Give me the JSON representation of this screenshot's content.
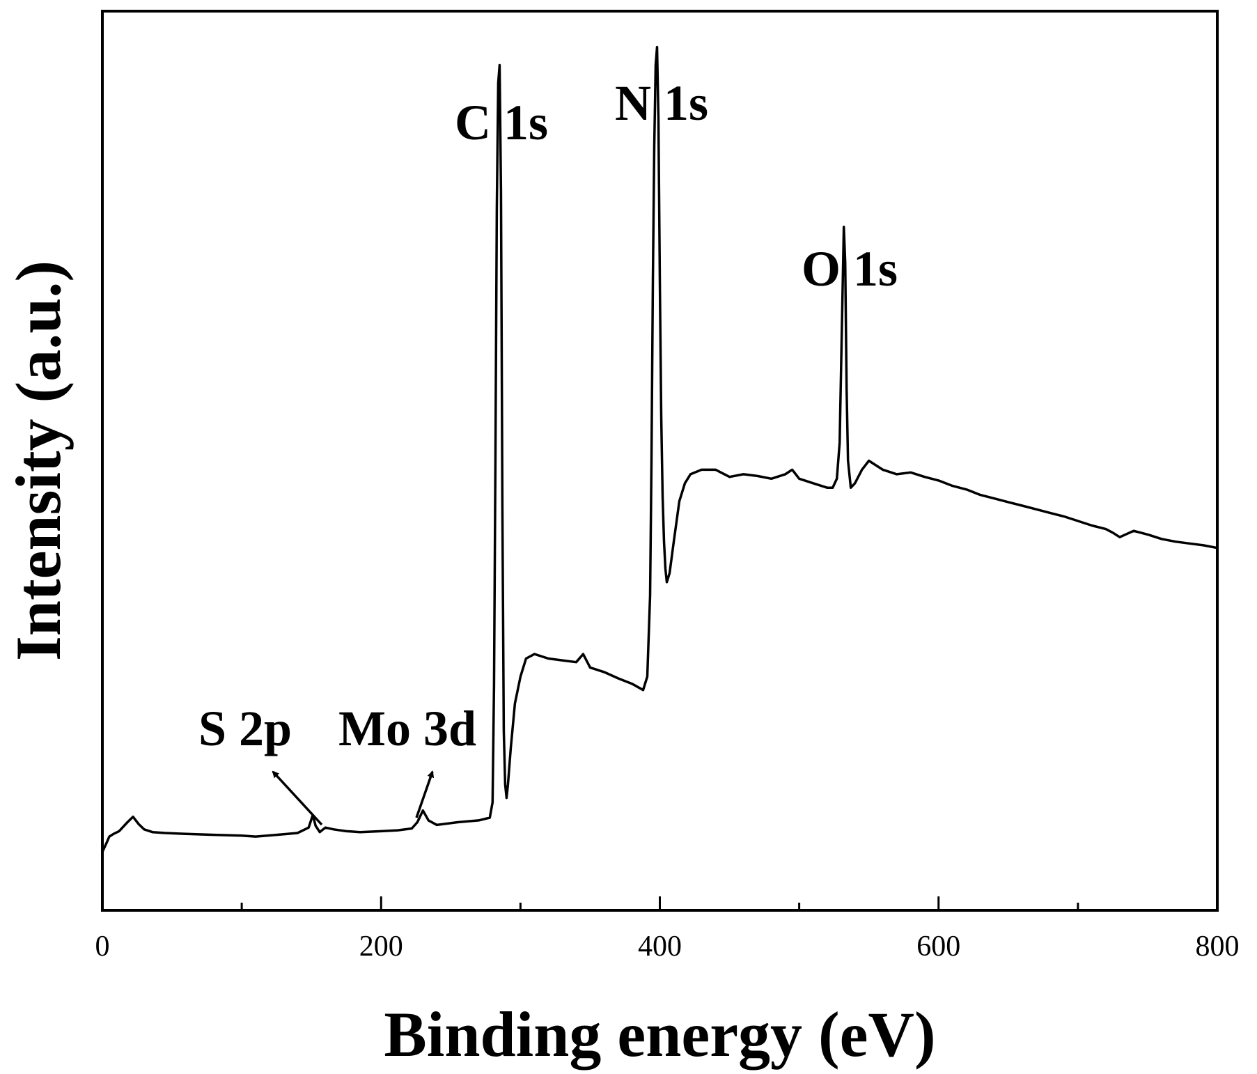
{
  "chart_data": {
    "type": "line",
    "xlabel": "Binding energy (eV)",
    "ylabel": "Intensity (a.u.)",
    "xlim": [
      0,
      800
    ],
    "ylim": [
      0,
      100
    ],
    "xticks": [
      0,
      200,
      400,
      600,
      800
    ],
    "grid": false,
    "legend": "none",
    "line_color": "#000000",
    "series": [
      {
        "x": [
          0,
          3,
          5,
          8,
          12,
          18,
          22,
          26,
          30,
          36,
          45,
          60,
          80,
          100,
          110,
          125,
          140,
          148,
          151,
          153,
          156,
          160,
          166,
          175,
          185,
          200,
          212,
          222,
          226,
          230,
          234,
          240,
          255,
          270,
          278,
          280,
          281,
          282,
          283,
          284,
          285,
          286,
          287,
          288,
          289,
          290,
          291,
          293,
          296,
          300,
          304,
          310,
          320,
          330,
          340,
          345,
          350,
          360,
          370,
          380,
          388,
          391,
          393,
          394,
          395,
          396,
          397,
          398,
          399,
          400,
          401,
          402,
          403,
          404,
          405,
          407,
          410,
          414,
          418,
          422,
          430,
          440,
          450,
          460,
          470,
          480,
          490,
          495,
          500,
          510,
          520,
          524,
          527,
          529,
          530,
          531,
          532,
          533,
          534,
          535,
          537,
          540,
          545,
          550,
          555,
          560,
          570,
          580,
          590,
          600,
          610,
          620,
          630,
          640,
          650,
          660,
          670,
          680,
          690,
          700,
          710,
          720,
          725,
          730,
          740,
          750,
          760,
          770,
          780,
          790,
          800
        ],
        "y": [
          6.5,
          7.5,
          8.2,
          8.5,
          8.8,
          9.8,
          10.4,
          9.6,
          9.0,
          8.7,
          8.6,
          8.5,
          8.4,
          8.3,
          8.2,
          8.4,
          8.6,
          9.2,
          10.6,
          9.4,
          8.7,
          9.2,
          9.0,
          8.8,
          8.7,
          8.8,
          8.9,
          9.1,
          9.8,
          11.1,
          10.0,
          9.5,
          9.8,
          10.0,
          10.3,
          12.0,
          25.0,
          50.0,
          78.0,
          92.0,
          94.0,
          80.0,
          45.0,
          20.0,
          14.0,
          12.5,
          14.0,
          18.0,
          23.0,
          26.0,
          28.0,
          28.5,
          28.0,
          27.8,
          27.6,
          28.5,
          27.0,
          26.5,
          25.8,
          25.2,
          24.5,
          26.0,
          35.0,
          50.0,
          70.0,
          85.0,
          94.0,
          96.0,
          88.0,
          70.0,
          55.0,
          46.0,
          41.0,
          38.0,
          36.5,
          37.5,
          41.0,
          45.5,
          47.5,
          48.5,
          49.0,
          49.0,
          48.2,
          48.5,
          48.3,
          48.0,
          48.5,
          49.0,
          48.0,
          47.5,
          47.0,
          47.0,
          48.0,
          52.0,
          60.0,
          68.0,
          76.0,
          72.0,
          58.0,
          50.0,
          47.0,
          47.5,
          49.0,
          50.0,
          49.5,
          49.0,
          48.5,
          48.7,
          48.2,
          47.8,
          47.2,
          46.8,
          46.2,
          45.8,
          45.4,
          45.0,
          44.6,
          44.2,
          43.8,
          43.3,
          42.8,
          42.4,
          42.0,
          41.5,
          42.2,
          41.8,
          41.3,
          41.0,
          40.8,
          40.6,
          40.3
        ]
      }
    ],
    "annotations": [
      {
        "text": "C 1s",
        "x": 284,
        "y": 94
      },
      {
        "text": "N 1s",
        "x": 398,
        "y": 96
      },
      {
        "text": "O 1s",
        "x": 531,
        "y": 76
      },
      {
        "text": "S 2p",
        "x": 153,
        "y": 10.6
      },
      {
        "text": "Mo 3d",
        "x": 230,
        "y": 11.1
      }
    ]
  }
}
